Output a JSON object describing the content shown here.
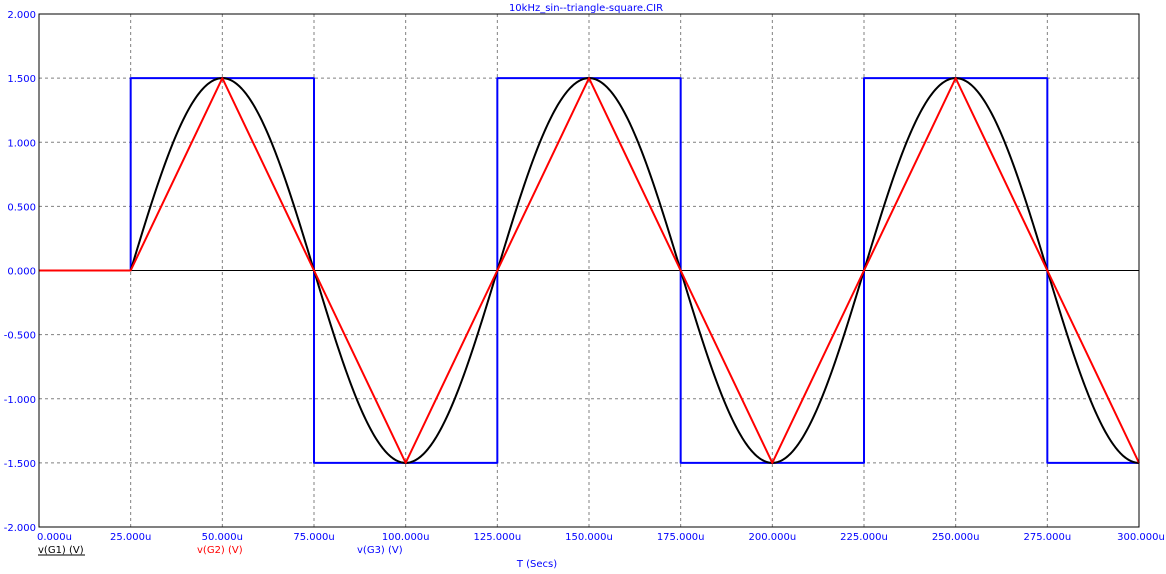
{
  "chart_data": {
    "type": "line",
    "title": "10kHz_sin--triangle-square.CIR",
    "xlabel": "T (Secs)",
    "ylabel": "",
    "xlim": [
      0,
      300
    ],
    "ylim": [
      -2.0,
      2.0
    ],
    "grid": true,
    "x_unit": "u",
    "x_ticks": [
      "0.000u",
      "25.000u",
      "50.000u",
      "75.000u",
      "100.000u",
      "125.000u",
      "150.000u",
      "175.000u",
      "200.000u",
      "225.000u",
      "250.000u",
      "275.000u",
      "300.000u"
    ],
    "y_ticks": [
      "2.000",
      "1.500",
      "1.000",
      "0.500",
      "0.000",
      "-0.500",
      "-1.000",
      "-1.500",
      "-2.000"
    ],
    "series": [
      {
        "name": "v(G1) (V)",
        "color": "#000000",
        "shape": "sine",
        "start": 25,
        "period": 100,
        "amplitude": 1.5,
        "x_end": 300
      },
      {
        "name": "v(G2) (V)",
        "color": "#ff0000",
        "shape": "triangle",
        "start": 25,
        "period": 100,
        "amplitude": 1.5,
        "x_end": 300
      },
      {
        "name": "v(G3) (V)",
        "color": "#0000ff",
        "shape": "square",
        "start": 25,
        "period": 100,
        "amplitude": 1.5,
        "x_end": 300
      }
    ],
    "zero_line_color": "#000000"
  }
}
